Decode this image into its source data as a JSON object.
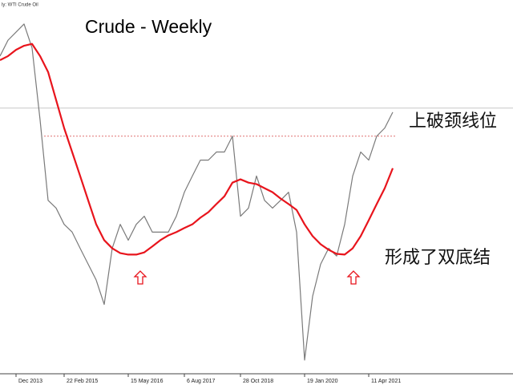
{
  "chart_data": {
    "type": "line",
    "title": "Crude - Weekly",
    "subtitle": "ly: WTI Crude Oil",
    "annotations": [
      "上破颈线位",
      "形成了双底结"
    ],
    "categories": [
      null,
      null,
      "Dec 2013",
      null,
      null,
      null,
      null,
      null,
      "22 Feb 2015",
      null,
      null,
      null,
      null,
      null,
      null,
      null,
      "15 May 2016",
      null,
      null,
      null,
      null,
      null,
      null,
      "6 Aug 2017",
      null,
      null,
      null,
      null,
      null,
      null,
      "28 Oct 2018",
      null,
      null,
      null,
      null,
      null,
      null,
      null,
      "19 Jan 2020",
      null,
      null,
      null,
      null,
      null,
      null,
      null,
      "11 Apr 2021",
      null,
      null,
      null
    ],
    "series": [
      {
        "color": "#7a7a7a",
        "values": [
          95.8,
          100.1,
          102.3,
          104.5,
          98,
          78.5,
          56.7,
          54.6,
          50.2,
          48.1,
          43.7,
          39.4,
          35.1,
          28.5,
          43.7,
          50.2,
          45.9,
          50.2,
          52.4,
          48.1,
          48.1,
          48.1,
          52.4,
          58.9,
          63.3,
          67.6,
          67.6,
          69.8,
          69.8,
          74.1,
          52.4,
          54.6,
          63.3,
          56.7,
          54.6,
          56.7,
          58.9,
          48.1,
          13.4,
          30.7,
          39.4,
          43.7,
          41.6,
          50.2,
          63.3,
          69.8,
          67.6,
          74.1,
          76.3,
          80.6
        ]
      },
      {
        "color": "#e8141c",
        "values": [
          94.7,
          95.8,
          97.5,
          98.6,
          99.1,
          95.8,
          91.5,
          83.9,
          76.3,
          69.8,
          63.3,
          56.7,
          50.2,
          45.9,
          43.7,
          42.4,
          42,
          42,
          42.6,
          44.2,
          45.9,
          47.2,
          48.1,
          49.2,
          50.2,
          52,
          53.5,
          55.7,
          57.8,
          61.5,
          62.4,
          61.5,
          61.1,
          60,
          58.9,
          57.2,
          55.7,
          54.1,
          50.2,
          47,
          44.8,
          43.3,
          42.2,
          42,
          43.7,
          47,
          51.3,
          55.7,
          60,
          65.4
        ]
      }
    ],
    "hlines": [
      {
        "value": 81.7,
        "color": "#c8c8c8"
      },
      {
        "value": 74.1,
        "color": "#e07070"
      }
    ],
    "ylim": [
      11,
      111
    ]
  }
}
